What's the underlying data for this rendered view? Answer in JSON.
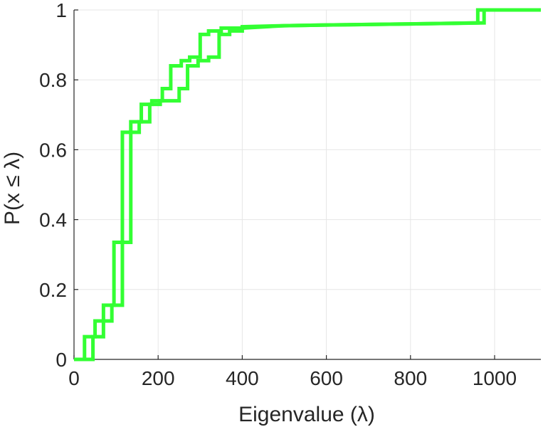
{
  "chart_data": {
    "type": "line",
    "step": true,
    "xlabel": "Eigenvalue (λ)",
    "ylabel": "P(x ≤ λ)",
    "xlim": [
      0,
      1110
    ],
    "ylim": [
      0,
      1
    ],
    "x_ticks": [
      0,
      200,
      400,
      600,
      800,
      1000
    ],
    "y_ticks": [
      0,
      0.2,
      0.4,
      0.6,
      0.8,
      1
    ],
    "grid": true,
    "series_color": "#33ff33",
    "series": [
      {
        "points": [
          [
            0,
            0
          ],
          [
            25,
            0
          ],
          [
            25,
            0.065
          ],
          [
            50,
            0.065
          ],
          [
            50,
            0.11
          ],
          [
            70,
            0.11
          ],
          [
            70,
            0.155
          ],
          [
            95,
            0.155
          ],
          [
            95,
            0.335
          ],
          [
            115,
            0.335
          ],
          [
            115,
            0.65
          ],
          [
            135,
            0.65
          ],
          [
            135,
            0.68
          ],
          [
            160,
            0.68
          ],
          [
            160,
            0.73
          ],
          [
            185,
            0.73
          ],
          [
            185,
            0.74
          ],
          [
            210,
            0.74
          ],
          [
            210,
            0.775
          ],
          [
            230,
            0.775
          ],
          [
            230,
            0.84
          ],
          [
            255,
            0.84
          ],
          [
            255,
            0.855
          ],
          [
            275,
            0.855
          ],
          [
            275,
            0.865
          ],
          [
            300,
            0.865
          ],
          [
            300,
            0.93
          ],
          [
            320,
            0.93
          ],
          [
            320,
            0.94
          ],
          [
            350,
            0.94
          ],
          [
            350,
            0.948
          ],
          [
            400,
            0.948
          ],
          [
            400,
            0.952
          ],
          [
            500,
            0.955
          ],
          [
            600,
            0.957
          ],
          [
            800,
            0.96
          ],
          [
            960,
            0.963
          ],
          [
            960,
            1
          ],
          [
            1110,
            1
          ]
        ]
      },
      {
        "points": [
          [
            0,
            0
          ],
          [
            45,
            0
          ],
          [
            45,
            0.065
          ],
          [
            70,
            0.065
          ],
          [
            70,
            0.11
          ],
          [
            90,
            0.11
          ],
          [
            90,
            0.155
          ],
          [
            115,
            0.155
          ],
          [
            115,
            0.335
          ],
          [
            135,
            0.335
          ],
          [
            135,
            0.65
          ],
          [
            155,
            0.65
          ],
          [
            155,
            0.68
          ],
          [
            180,
            0.68
          ],
          [
            180,
            0.73
          ],
          [
            205,
            0.73
          ],
          [
            205,
            0.74
          ],
          [
            250,
            0.74
          ],
          [
            250,
            0.775
          ],
          [
            270,
            0.775
          ],
          [
            270,
            0.84
          ],
          [
            295,
            0.84
          ],
          [
            295,
            0.855
          ],
          [
            320,
            0.855
          ],
          [
            320,
            0.865
          ],
          [
            345,
            0.865
          ],
          [
            345,
            0.93
          ],
          [
            370,
            0.93
          ],
          [
            370,
            0.94
          ],
          [
            400,
            0.94
          ],
          [
            400,
            0.948
          ],
          [
            500,
            0.955
          ],
          [
            600,
            0.957
          ],
          [
            800,
            0.96
          ],
          [
            975,
            0.963
          ],
          [
            975,
            1
          ],
          [
            1110,
            1
          ]
        ]
      }
    ]
  }
}
